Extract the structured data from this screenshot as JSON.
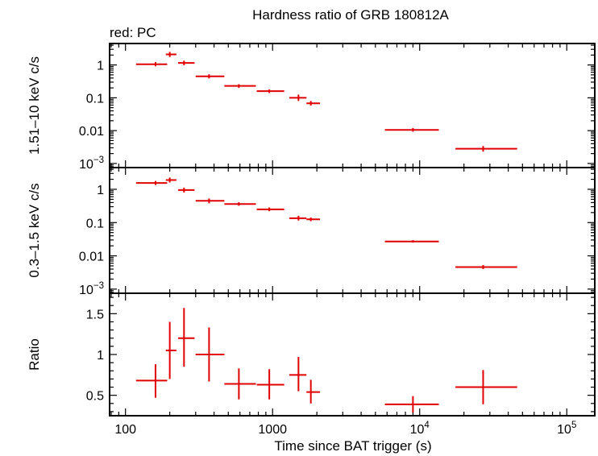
{
  "chart_data": {
    "type": "scatter",
    "title": "Hardness ratio of GRB 180812A",
    "subtitle": "red: PC",
    "xlabel": "Time since BAT trigger (s)",
    "xscale": "log",
    "xlim": [
      78,
      155000
    ],
    "x_ticks": [
      {
        "value": 100,
        "label": "100",
        "exp": ""
      },
      {
        "value": 1000,
        "label": "1000",
        "exp": ""
      },
      {
        "value": 10000,
        "label": "10",
        "exp": "4"
      },
      {
        "value": 100000,
        "label": "10",
        "exp": "5"
      }
    ],
    "color": "#e00000",
    "panels": [
      {
        "ylabel": "1.51–10 keV c/s",
        "yscale": "log",
        "ylim": [
          0.00075,
          4.5
        ],
        "y_ticks": [
          {
            "value": 1,
            "label": "1",
            "exp": ""
          },
          {
            "value": 0.1,
            "label": "0.1",
            "exp": ""
          },
          {
            "value": 0.01,
            "label": "0.01",
            "exp": ""
          },
          {
            "value": 0.001,
            "label": "10",
            "exp": "−3"
          }
        ],
        "points": [
          {
            "x": 160,
            "xlo": 118,
            "xhi": 192,
            "y": 1.05,
            "ylo": 0.91,
            "yhi": 1.22
          },
          {
            "x": 200,
            "xlo": 188,
            "xhi": 222,
            "y": 2.1,
            "ylo": 1.75,
            "yhi": 2.5
          },
          {
            "x": 250,
            "xlo": 228,
            "xhi": 295,
            "y": 1.15,
            "ylo": 0.98,
            "yhi": 1.35
          },
          {
            "x": 370,
            "xlo": 300,
            "xhi": 470,
            "y": 0.45,
            "ylo": 0.39,
            "yhi": 0.52
          },
          {
            "x": 590,
            "xlo": 470,
            "xhi": 770,
            "y": 0.23,
            "ylo": 0.2,
            "yhi": 0.26
          },
          {
            "x": 950,
            "xlo": 780,
            "xhi": 1200,
            "y": 0.16,
            "ylo": 0.14,
            "yhi": 0.18
          },
          {
            "x": 1500,
            "xlo": 1300,
            "xhi": 1700,
            "y": 0.1,
            "ylo": 0.08,
            "yhi": 0.125
          },
          {
            "x": 1820,
            "xlo": 1700,
            "xhi": 2100,
            "y": 0.068,
            "ylo": 0.058,
            "yhi": 0.08
          },
          {
            "x": 9000,
            "xlo": 5800,
            "xhi": 13500,
            "y": 0.0105,
            "ylo": 0.0093,
            "yhi": 0.012
          },
          {
            "x": 27000,
            "xlo": 17500,
            "xhi": 46000,
            "y": 0.0028,
            "ylo": 0.0023,
            "yhi": 0.0034
          }
        ]
      },
      {
        "ylabel": "0.3–1.5 keV c/s",
        "yscale": "log",
        "ylim": [
          0.00075,
          4.5
        ],
        "y_ticks": [
          {
            "value": 1,
            "label": "1",
            "exp": ""
          },
          {
            "value": 0.1,
            "label": "0.1",
            "exp": ""
          },
          {
            "value": 0.01,
            "label": "0.01",
            "exp": ""
          },
          {
            "value": 0.001,
            "label": "10",
            "exp": "−3"
          }
        ],
        "points": [
          {
            "x": 160,
            "xlo": 118,
            "xhi": 192,
            "y": 1.55,
            "ylo": 1.35,
            "yhi": 1.78
          },
          {
            "x": 200,
            "xlo": 188,
            "xhi": 222,
            "y": 1.9,
            "ylo": 1.6,
            "yhi": 2.25
          },
          {
            "x": 250,
            "xlo": 228,
            "xhi": 295,
            "y": 0.95,
            "ylo": 0.8,
            "yhi": 1.12
          },
          {
            "x": 370,
            "xlo": 300,
            "xhi": 470,
            "y": 0.45,
            "ylo": 0.38,
            "yhi": 0.53
          },
          {
            "x": 590,
            "xlo": 470,
            "xhi": 770,
            "y": 0.36,
            "ylo": 0.32,
            "yhi": 0.41
          },
          {
            "x": 950,
            "xlo": 780,
            "xhi": 1200,
            "y": 0.25,
            "ylo": 0.22,
            "yhi": 0.285
          },
          {
            "x": 1500,
            "xlo": 1300,
            "xhi": 1700,
            "y": 0.135,
            "ylo": 0.115,
            "yhi": 0.16
          },
          {
            "x": 1820,
            "xlo": 1700,
            "xhi": 2100,
            "y": 0.125,
            "ylo": 0.11,
            "yhi": 0.142
          },
          {
            "x": 9000,
            "xlo": 5800,
            "xhi": 13500,
            "y": 0.027,
            "ylo": 0.025,
            "yhi": 0.0295
          },
          {
            "x": 27000,
            "xlo": 17500,
            "xhi": 46000,
            "y": 0.0046,
            "ylo": 0.004,
            "yhi": 0.0053
          }
        ]
      },
      {
        "ylabel": "Ratio",
        "yscale": "linear",
        "ylim": [
          0.25,
          1.75
        ],
        "y_ticks": [
          {
            "value": 0.5,
            "label": "0.5",
            "exp": ""
          },
          {
            "value": 1,
            "label": "1",
            "exp": ""
          },
          {
            "value": 1.5,
            "label": "1.5",
            "exp": ""
          }
        ],
        "points": [
          {
            "x": 160,
            "xlo": 118,
            "xhi": 192,
            "y": 0.68,
            "ylo": 0.47,
            "yhi": 0.88
          },
          {
            "x": 200,
            "xlo": 188,
            "xhi": 222,
            "y": 1.05,
            "ylo": 0.7,
            "yhi": 1.4
          },
          {
            "x": 250,
            "xlo": 228,
            "xhi": 295,
            "y": 1.2,
            "ylo": 0.85,
            "yhi": 1.57
          },
          {
            "x": 370,
            "xlo": 300,
            "xhi": 470,
            "y": 1.0,
            "ylo": 0.67,
            "yhi": 1.33
          },
          {
            "x": 590,
            "xlo": 470,
            "xhi": 770,
            "y": 0.64,
            "ylo": 0.45,
            "yhi": 0.83
          },
          {
            "x": 950,
            "xlo": 780,
            "xhi": 1200,
            "y": 0.63,
            "ylo": 0.45,
            "yhi": 0.82
          },
          {
            "x": 1500,
            "xlo": 1300,
            "xhi": 1700,
            "y": 0.75,
            "ylo": 0.55,
            "yhi": 0.97
          },
          {
            "x": 1820,
            "xlo": 1700,
            "xhi": 2100,
            "y": 0.54,
            "ylo": 0.4,
            "yhi": 0.69
          },
          {
            "x": 9000,
            "xlo": 5800,
            "xhi": 13500,
            "y": 0.39,
            "ylo": 0.29,
            "yhi": 0.49
          },
          {
            "x": 27000,
            "xlo": 17500,
            "xhi": 46000,
            "y": 0.6,
            "ylo": 0.39,
            "yhi": 0.81
          }
        ]
      }
    ]
  }
}
